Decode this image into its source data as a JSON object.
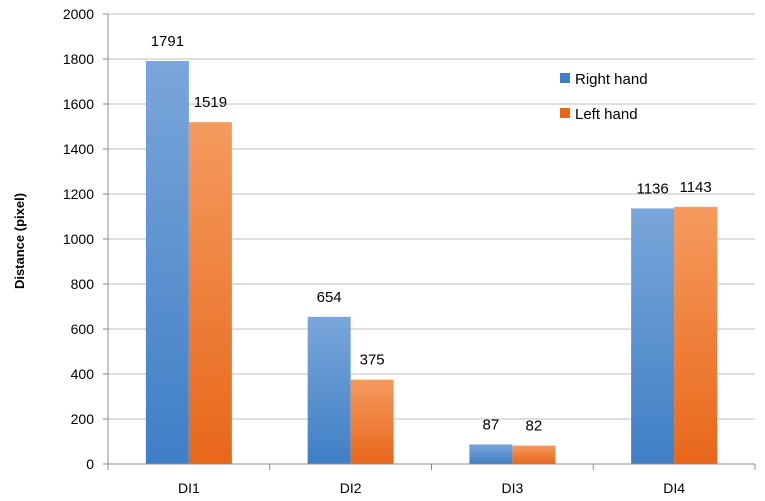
{
  "chart_data": {
    "type": "bar",
    "categories": [
      "DI1",
      "DI2",
      "DI3",
      "DI4"
    ],
    "series": [
      {
        "name": "Right hand",
        "values": [
          1791,
          654,
          87,
          1136
        ]
      },
      {
        "name": "Left hand",
        "values": [
          1519,
          375,
          82,
          1143
        ]
      }
    ],
    "ylabel": "Distance (pixel)",
    "xlabel": "",
    "ylim": [
      0,
      2000
    ],
    "yticks": [
      0,
      200,
      400,
      600,
      800,
      1000,
      1200,
      1400,
      1600,
      1800,
      2000
    ],
    "grid": true,
    "legend_position": "top-right",
    "colors": {
      "Right hand": {
        "top": "#7aa6da",
        "bottom": "#3f7fc6"
      },
      "Left hand": {
        "top": "#f59a5e",
        "bottom": "#e8671a"
      },
      "gridline": "#bfbfbf",
      "axis": "#8c8c8c"
    }
  }
}
